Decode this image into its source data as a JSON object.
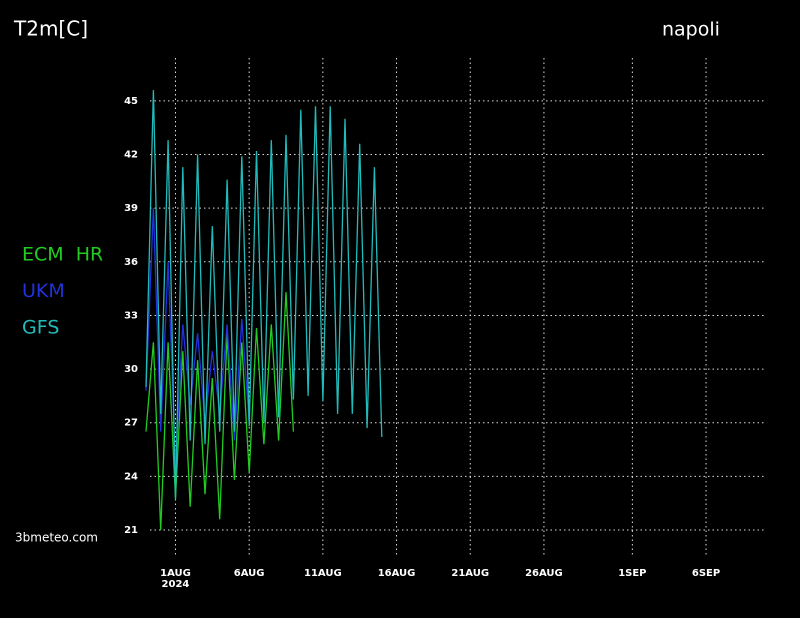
{
  "chart_data": {
    "type": "line",
    "title": "T2m[C]",
    "location": "napoli",
    "source": "3bmeteo.com",
    "x_year": "2024",
    "xlim": [
      -1,
      41
    ],
    "xticks": [
      {
        "value": 1,
        "label": "1AUG"
      },
      {
        "value": 6,
        "label": "6AUG"
      },
      {
        "value": 11,
        "label": "11AUG"
      },
      {
        "value": 16,
        "label": "16AUG"
      },
      {
        "value": 21,
        "label": "21AUG"
      },
      {
        "value": 26,
        "label": "26AUG"
      },
      {
        "value": 32,
        "label": "1SEP"
      },
      {
        "value": 37,
        "label": "6SEP"
      }
    ],
    "ylim": [
      19.6,
      47.4
    ],
    "yticks": [
      21,
      24,
      27,
      30,
      33,
      36,
      39,
      42,
      45
    ],
    "grid": true,
    "series": [
      {
        "name": "ECM  HR",
        "color": "#22cc22",
        "x": [
          -1,
          -0.5,
          0,
          0.5,
          1,
          1.5,
          2,
          2.5,
          3,
          3.5,
          4,
          4.5,
          5,
          5.5,
          6,
          6.5,
          7,
          7.5,
          8,
          8.5,
          9
        ],
        "values": [
          26.5,
          31.5,
          21,
          31.5,
          22.8,
          31,
          22.3,
          30.5,
          23,
          29.5,
          21.6,
          32,
          23.8,
          31.5,
          24.2,
          32.3,
          25.8,
          32.5,
          26,
          34.3,
          26.5
        ]
      },
      {
        "name": "UKM",
        "color": "#2233dd",
        "x": [
          -1,
          -0.5,
          0,
          0.5,
          1,
          1.5,
          2,
          2.5,
          3,
          3.5,
          4,
          4.5,
          5,
          5.5,
          6
        ],
        "values": [
          28.8,
          39,
          26.5,
          36,
          24.5,
          32.5,
          28,
          32,
          27,
          31,
          27.5,
          32.5,
          26,
          32.8,
          27
        ]
      },
      {
        "name": "GFS",
        "color": "#22bbbb",
        "x": [
          -1,
          -0.5,
          0,
          0.5,
          1,
          1.5,
          2,
          2.5,
          3,
          3.5,
          4,
          4.5,
          5,
          5.5,
          6,
          6.5,
          7,
          7.5,
          8,
          8.5,
          9,
          9.5,
          10,
          10.5,
          11,
          11.5,
          12,
          12.5,
          13,
          13.5,
          14,
          14.5,
          15
        ],
        "values": [
          29,
          45.6,
          27.5,
          42.8,
          22.7,
          41.3,
          26,
          42,
          25.8,
          38,
          26.5,
          40.6,
          26.5,
          41.9,
          26.8,
          42.2,
          27,
          42.8,
          27.3,
          43.1,
          28.3,
          44.5,
          28.5,
          44.7,
          28.2,
          44.7,
          27.5,
          44,
          27.5,
          42.6,
          26.7,
          41.3,
          26.2
        ]
      }
    ]
  }
}
